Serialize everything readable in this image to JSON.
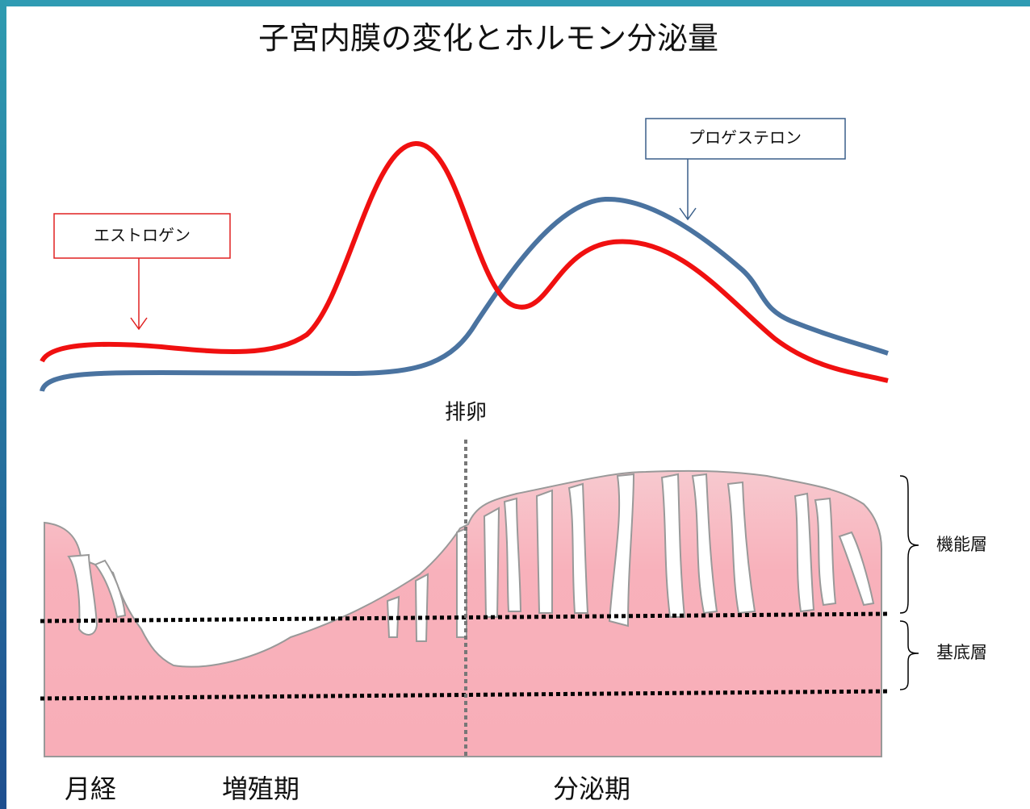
{
  "title": "子宮内膜の変化とホルモン分泌量",
  "hormones": {
    "estrogen": "エストロゲン",
    "progesterone": "プロゲステロン"
  },
  "ovulation": "排卵",
  "layers": {
    "functional": "機能層",
    "basal": "基底層"
  },
  "phases": [
    "月経",
    "増殖期",
    "分泌期"
  ]
}
